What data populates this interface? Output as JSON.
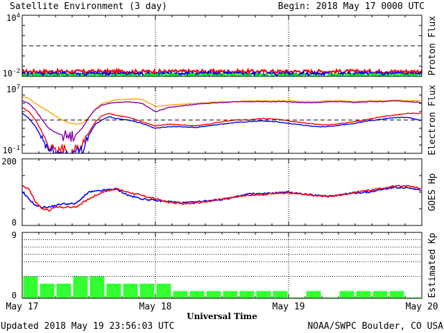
{
  "header": {
    "title": "Satellite Environment (3 day)",
    "begin": "Begin:  2018 May 17 0000 UTC"
  },
  "footer": {
    "updated": "Updated 2018 May 19 23:56:03 UTC",
    "credit": "NOAA/SWPC Boulder, CO USA",
    "xlabel": "Universal Time"
  },
  "x_ticks": [
    "May 17",
    "May 18",
    "May 19",
    "May 20"
  ],
  "colors": {
    "red": "#ff0000",
    "blue": "#0000ff",
    "green": "#00ff00",
    "orange": "#ffa500",
    "purple": "#8800aa",
    "kp_bar": "#33ff33"
  },
  "chart_data": [
    {
      "id": "proton",
      "type": "line",
      "ylabel": "Proton Flux",
      "scale": "log",
      "ylim_exp": [
        -2,
        4
      ],
      "ytick_labels": [
        {
          "base": "10",
          "exp": "4"
        },
        {
          "base": "10",
          "exp": "-2"
        }
      ],
      "threshold": 10,
      "series": [
        {
          "color": "red",
          "level": 0.03
        },
        {
          "color": "blue",
          "level": 0.018
        },
        {
          "color": "green",
          "level": 0.012
        }
      ]
    },
    {
      "id": "electron",
      "type": "line",
      "ylabel": "Electron Flux",
      "scale": "log",
      "ylim_exp": [
        -1,
        7
      ],
      "ytick_labels": [
        {
          "base": "10",
          "exp": "7"
        },
        {
          "base": "10",
          "exp": "-1"
        }
      ],
      "threshold": 1000,
      "x_days": [
        0,
        0.05,
        0.1,
        0.15,
        0.2,
        0.25,
        0.3,
        0.35,
        0.4,
        0.45,
        0.5,
        0.55,
        0.6,
        0.65,
        0.7,
        0.8,
        0.9,
        1.0,
        1.1,
        1.2,
        1.3,
        1.4,
        1.5,
        1.6,
        1.7,
        1.8,
        1.9,
        2.0,
        2.1,
        2.2,
        2.3,
        2.4,
        2.5,
        2.6,
        2.7,
        2.8,
        2.9,
        3.0
      ],
      "series": [
        {
          "color": "orange",
          "exp": [
            5.8,
            5.6,
            5.0,
            4.5,
            4.0,
            3.5,
            3.0,
            2.7,
            2.5,
            2.6,
            3.3,
            4.3,
            5.0,
            5.2,
            5.4,
            5.5,
            5.5,
            4.6,
            4.8,
            4.9,
            5.0,
            5.1,
            5.2,
            5.2,
            5.3,
            5.3,
            5.3,
            5.3,
            5.2,
            5.2,
            5.3,
            5.3,
            5.2,
            5.3,
            5.3,
            5.4,
            5.3,
            5.3
          ]
        },
        {
          "color": "purple",
          "exp": [
            5.3,
            5.0,
            4.2,
            3.0,
            2.0,
            1.5,
            1.2,
            1.0,
            1.2,
            2.0,
            3.3,
            4.3,
            4.8,
            5.0,
            5.1,
            5.2,
            5.0,
            4.0,
            4.5,
            4.7,
            4.9,
            5.0,
            5.1,
            5.2,
            5.2,
            5.2,
            5.2,
            5.2,
            5.1,
            5.1,
            5.2,
            5.2,
            5.1,
            5.2,
            5.2,
            5.3,
            5.2,
            5.1
          ]
        },
        {
          "color": "red",
          "exp": [
            4.5,
            4.0,
            3.0,
            1.5,
            0.0,
            -1.0,
            -0.5,
            -1.0,
            -0.5,
            0.0,
            1.5,
            2.8,
            3.5,
            3.8,
            3.6,
            3.3,
            2.8,
            2.3,
            2.5,
            2.4,
            2.3,
            2.5,
            2.8,
            3.0,
            3.0,
            3.2,
            3.1,
            2.9,
            2.7,
            2.5,
            2.4,
            2.6,
            2.8,
            3.1,
            3.4,
            3.6,
            3.8,
            3.8
          ]
        },
        {
          "color": "blue",
          "exp": [
            3.8,
            3.2,
            2.2,
            0.8,
            -0.6,
            -1.0,
            -1.0,
            -1.0,
            -1.0,
            -0.5,
            1.2,
            2.5,
            3.0,
            3.4,
            3.2,
            3.0,
            2.6,
            2.0,
            2.2,
            2.2,
            2.1,
            2.3,
            2.5,
            2.7,
            2.8,
            2.9,
            2.8,
            2.6,
            2.4,
            2.2,
            2.2,
            2.4,
            2.6,
            2.9,
            3.1,
            3.3,
            3.3,
            2.9
          ]
        }
      ]
    },
    {
      "id": "hp",
      "type": "line",
      "ylabel": "GOES Hp",
      "ylim": [
        0,
        200
      ],
      "ytick_labels": [
        "200",
        "0"
      ],
      "x_days": [
        0,
        0.05,
        0.1,
        0.15,
        0.2,
        0.25,
        0.3,
        0.4,
        0.5,
        0.6,
        0.7,
        0.8,
        0.9,
        1.0,
        1.1,
        1.2,
        1.3,
        1.4,
        1.5,
        1.6,
        1.7,
        1.8,
        1.9,
        2.0,
        2.1,
        2.2,
        2.3,
        2.4,
        2.5,
        2.6,
        2.7,
        2.8,
        2.9,
        3.0
      ],
      "series": [
        {
          "color": "blue",
          "values": [
            100,
            80,
            60,
            55,
            55,
            60,
            65,
            65,
            100,
            105,
            110,
            90,
            80,
            75,
            72,
            68,
            70,
            75,
            78,
            85,
            95,
            95,
            98,
            100,
            95,
            90,
            88,
            93,
            98,
            100,
            108,
            115,
            112,
            105
          ]
        },
        {
          "color": "red",
          "values": [
            120,
            110,
            70,
            50,
            45,
            55,
            55,
            55,
            80,
            100,
            110,
            100,
            90,
            80,
            70,
            65,
            68,
            72,
            80,
            85,
            90,
            92,
            97,
            98,
            95,
            90,
            88,
            92,
            100,
            105,
            112,
            118,
            118,
            110
          ]
        }
      ]
    },
    {
      "id": "kp",
      "type": "bar",
      "ylabel": "Estimated Kp",
      "ylim": [
        0,
        9
      ],
      "ytick_labels": [
        "9",
        "0"
      ],
      "values": [
        3,
        2,
        2,
        3,
        3,
        2,
        2,
        2,
        2,
        1,
        1,
        1,
        1,
        1,
        1,
        1,
        0,
        1,
        0,
        1,
        1,
        1,
        1,
        0
      ]
    }
  ]
}
